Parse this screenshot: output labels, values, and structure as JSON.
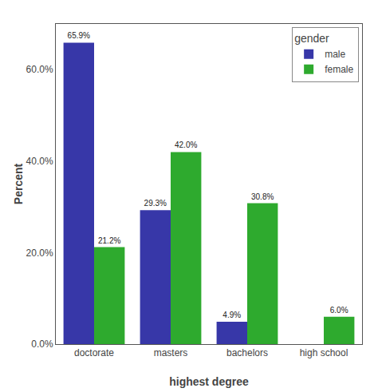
{
  "chart_data": {
    "type": "bar",
    "categories": [
      "doctorate",
      "masters",
      "bachelors",
      "high school"
    ],
    "series": [
      {
        "name": "male",
        "color": "#3737a8",
        "values": [
          65.9,
          29.3,
          4.9,
          0.0
        ],
        "value_labels": [
          "65.9%",
          "29.3%",
          "4.9%",
          null
        ]
      },
      {
        "name": "female",
        "color": "#2eaa2e",
        "values": [
          21.2,
          42.0,
          30.8,
          6.0
        ],
        "value_labels": [
          "21.2%",
          "42.0%",
          "30.8%",
          "6.0%"
        ]
      }
    ],
    "x_label": "highest degree",
    "y_label": "Percent",
    "ylim": [
      0,
      70
    ],
    "yticks": [
      {
        "value": 0,
        "label": "0.0%"
      },
      {
        "value": 20,
        "label": "20.0%"
      },
      {
        "value": 40,
        "label": "40.0%"
      },
      {
        "value": 60,
        "label": "60.0%"
      }
    ],
    "legend": "upper right",
    "legend_title": "gender",
    "data_labels": true,
    "grid": false
  }
}
